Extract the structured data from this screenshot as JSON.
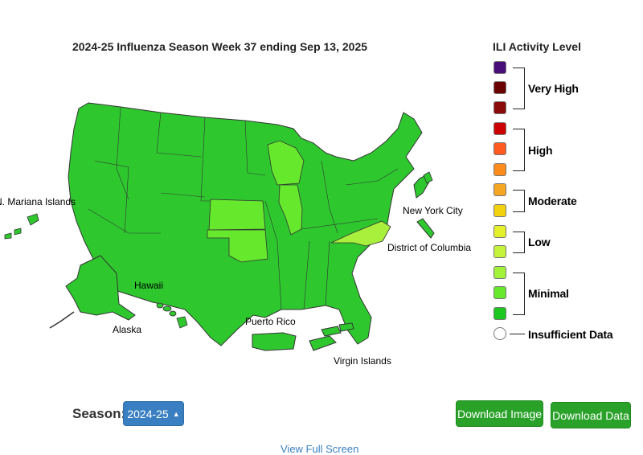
{
  "map": {
    "title": "2024-25 Influenza Season Week 37 ending Sep 13, 2025",
    "labels": {
      "mariana": "N. Mariana Islands",
      "hawaii": "Hawaii",
      "alaska": "Alaska",
      "puerto_rico": "Puerto Rico",
      "virgin_islands": "Virgin Islands",
      "new_york_city": "New York City",
      "dc": "District of Columbia"
    }
  },
  "legend": {
    "title": "ILI Activity Level",
    "groups": {
      "very_high": "Very High",
      "high": "High",
      "moderate": "Moderate",
      "low": "Low",
      "minimal": "Minimal",
      "insufficient": "Insufficient Data"
    },
    "colors": [
      "#4a0e7a",
      "#6b0000",
      "#8b0a0a",
      "#cc0000",
      "#ff5a1f",
      "#ff8c1a",
      "#f5a623",
      "#f2d20f",
      "#e4f02a",
      "#c5f23b",
      "#a3f23a",
      "#66e82d",
      "#1ec71e",
      "#ffffff"
    ]
  },
  "controls": {
    "season_label": "Season:",
    "season_value": "2024-25",
    "download_image": "Download Image",
    "download_data": "Download Data",
    "view_full_screen": "View Full Screen"
  },
  "map_colors": {
    "minimal_3": "#2ec82e",
    "minimal_2": "#66e82d",
    "low": "#a8f03c"
  }
}
